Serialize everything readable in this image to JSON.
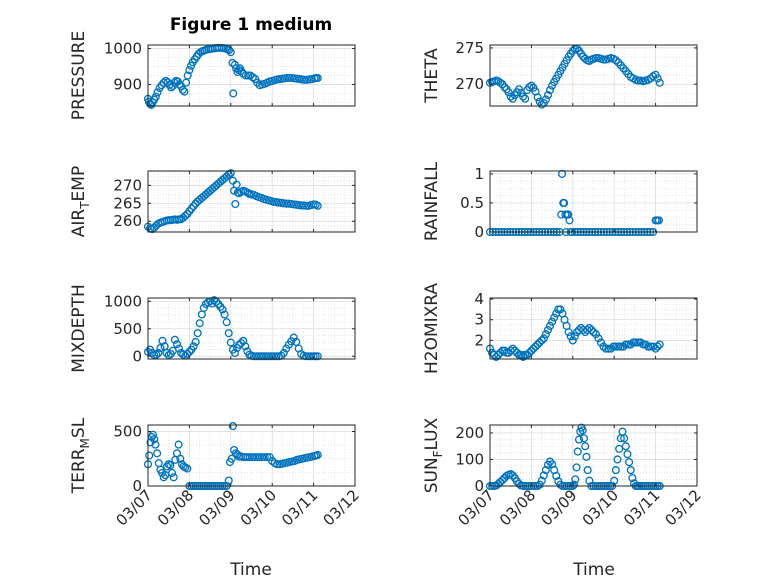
{
  "figure": {
    "title": "Figure 1 medium",
    "xlabel": "Time",
    "x_ticks": [
      "03/07",
      "03/08",
      "03/09",
      "03/10",
      "03/11",
      "03/12"
    ],
    "marker_color": "#0072BD",
    "grid_color": "#d9d9d9",
    "axes_color": "#262626"
  },
  "chart_data": [
    {
      "type": "scatter",
      "title": "Figure 1 medium",
      "ylabel": "PRESSURE",
      "ylim": [
        840,
        1010
      ],
      "yticks": [
        900,
        1000
      ],
      "xlim": [
        "03/07",
        "03/12"
      ],
      "x": [
        0.0,
        0.02,
        0.05,
        0.08,
        0.11,
        0.15,
        0.19,
        0.23,
        0.28,
        0.33,
        0.38,
        0.43,
        0.48,
        0.52,
        0.56,
        0.6,
        0.64,
        0.68,
        0.72,
        0.76,
        0.8,
        0.84,
        0.88,
        0.92,
        0.96,
        1.0,
        1.04,
        1.08,
        1.13,
        1.18,
        1.22,
        1.27,
        1.32,
        1.37,
        1.41,
        1.46,
        1.51,
        1.56,
        1.62,
        1.67,
        1.72,
        1.78,
        1.83,
        1.88,
        1.92,
        1.96,
        2.0,
        2.04,
        2.06,
        2.1,
        2.13,
        2.16,
        2.19,
        2.22,
        2.25,
        2.3,
        2.36,
        2.42,
        2.47,
        2.53,
        2.59,
        2.64,
        2.7,
        2.76,
        2.82,
        2.88,
        2.94,
        3.0,
        3.06,
        3.12,
        3.18,
        3.24,
        3.3,
        3.36,
        3.42,
        3.48,
        3.54,
        3.6,
        3.66,
        3.72,
        3.78,
        3.84,
        3.9,
        3.96,
        4.02,
        4.06,
        4.1
      ],
      "y": [
        860,
        852,
        846,
        843,
        850,
        858,
        866,
        878,
        890,
        898,
        905,
        910,
        906,
        899,
        892,
        896,
        905,
        910,
        908,
        900,
        895,
        885,
        880,
        905,
        925,
        940,
        952,
        962,
        970,
        978,
        985,
        990,
        993,
        995,
        997,
        998,
        999,
        1000,
        1001,
        1002,
        1002,
        1002,
        1001,
        1000,
        998,
        996,
        990,
        960,
        875,
        955,
        945,
        935,
        940,
        945,
        938,
        930,
        925,
        925,
        925,
        920,
        915,
        905,
        898,
        900,
        902,
        905,
        908,
        910,
        912,
        914,
        915,
        916,
        917,
        918,
        918,
        918,
        917,
        916,
        915,
        914,
        913,
        913,
        914,
        915,
        917,
        918,
        918
      ]
    },
    {
      "type": "scatter",
      "ylabel": "THETA",
      "ylim": [
        267,
        275.4
      ],
      "yticks": [
        270,
        275
      ],
      "xlim": [
        "03/07",
        "03/12"
      ],
      "x": [
        0.0,
        0.05,
        0.1,
        0.15,
        0.2,
        0.25,
        0.3,
        0.35,
        0.4,
        0.45,
        0.5,
        0.55,
        0.6,
        0.65,
        0.7,
        0.75,
        0.8,
        0.85,
        0.9,
        0.95,
        1.0,
        1.05,
        1.1,
        1.15,
        1.2,
        1.25,
        1.3,
        1.35,
        1.4,
        1.45,
        1.5,
        1.55,
        1.6,
        1.65,
        1.7,
        1.75,
        1.8,
        1.85,
        1.9,
        1.95,
        2.0,
        2.05,
        2.1,
        2.15,
        2.2,
        2.25,
        2.3,
        2.35,
        2.4,
        2.45,
        2.5,
        2.56,
        2.62,
        2.68,
        2.74,
        2.8,
        2.86,
        2.92,
        2.98,
        3.04,
        3.1,
        3.16,
        3.22,
        3.28,
        3.34,
        3.4,
        3.46,
        3.52,
        3.58,
        3.64,
        3.7,
        3.76,
        3.82,
        3.88,
        3.94,
        4.0,
        4.05,
        4.1
      ],
      "y": [
        270.2,
        270.3,
        270.4,
        270.5,
        270.4,
        270.2,
        270.0,
        269.6,
        269.3,
        268.9,
        268.3,
        268.0,
        268.5,
        268.9,
        269.3,
        268.8,
        268.3,
        268.0,
        269.2,
        269.6,
        269.8,
        269.5,
        269.0,
        268.2,
        267.6,
        267.2,
        267.4,
        267.9,
        268.5,
        269.2,
        269.8,
        270.3,
        270.8,
        271.3,
        271.8,
        272.3,
        272.8,
        273.3,
        273.8,
        274.2,
        274.6,
        274.8,
        274.9,
        274.6,
        274.2,
        273.8,
        273.5,
        273.3,
        273.2,
        273.4,
        273.5,
        273.6,
        273.6,
        273.5,
        273.4,
        273.4,
        273.5,
        273.6,
        273.5,
        273.3,
        273.0,
        272.6,
        272.2,
        271.8,
        271.4,
        271.0,
        270.8,
        270.6,
        270.5,
        270.5,
        270.4,
        270.5,
        270.6,
        270.8,
        271.1,
        271.3,
        270.8,
        270.2
      ]
    },
    {
      "type": "scatter",
      "ylabel": "AIR_TEMP",
      "ylim": [
        257,
        274
      ],
      "yticks": [
        260,
        265,
        270
      ],
      "xlim": [
        "03/07",
        "03/12"
      ],
      "x": [
        0.0,
        0.05,
        0.1,
        0.15,
        0.2,
        0.25,
        0.3,
        0.35,
        0.4,
        0.45,
        0.5,
        0.55,
        0.6,
        0.65,
        0.7,
        0.75,
        0.8,
        0.85,
        0.9,
        0.95,
        1.0,
        1.05,
        1.1,
        1.15,
        1.2,
        1.25,
        1.3,
        1.35,
        1.4,
        1.45,
        1.5,
        1.55,
        1.6,
        1.65,
        1.7,
        1.75,
        1.8,
        1.85,
        1.9,
        1.95,
        2.0,
        2.05,
        2.08,
        2.11,
        2.14,
        2.17,
        2.2,
        2.25,
        2.3,
        2.35,
        2.4,
        2.45,
        2.5,
        2.56,
        2.62,
        2.68,
        2.74,
        2.8,
        2.86,
        2.92,
        2.98,
        3.04,
        3.1,
        3.16,
        3.22,
        3.28,
        3.34,
        3.4,
        3.46,
        3.52,
        3.58,
        3.64,
        3.7,
        3.76,
        3.82,
        3.88,
        3.94,
        4.0,
        4.05,
        4.1
      ],
      "y": [
        258.5,
        258.0,
        257.8,
        258.2,
        258.8,
        259.3,
        259.6,
        259.8,
        260.0,
        260.2,
        260.3,
        260.3,
        260.4,
        260.5,
        260.4,
        260.5,
        260.6,
        261.0,
        261.5,
        262.0,
        262.8,
        263.5,
        264.2,
        264.9,
        265.5,
        266.0,
        266.5,
        267.0,
        267.5,
        268.0,
        268.5,
        269.0,
        269.5,
        270.0,
        270.5,
        271.0,
        271.5,
        272.0,
        272.5,
        273.0,
        273.4,
        271.3,
        268.5,
        264.8,
        270.2,
        268.0,
        267.8,
        268.2,
        268.5,
        268.3,
        268.0,
        267.6,
        267.5,
        267.3,
        267.0,
        266.7,
        266.5,
        266.2,
        266.0,
        265.8,
        265.6,
        265.4,
        265.3,
        265.2,
        265.1,
        265.0,
        264.9,
        264.9,
        264.8,
        264.7,
        264.6,
        264.5,
        264.4,
        264.4,
        264.3,
        264.3,
        264.5,
        264.7,
        264.6,
        264.3
      ]
    },
    {
      "type": "scatter",
      "ylabel": "RAINFALL",
      "ylim": [
        0,
        1.05
      ],
      "yticks": [
        0,
        0.5,
        1
      ],
      "xlim": [
        "03/07",
        "03/12"
      ],
      "x": [
        0.0,
        0.07,
        0.14,
        0.21,
        0.28,
        0.35,
        0.42,
        0.49,
        0.56,
        0.63,
        0.7,
        0.77,
        0.84,
        0.91,
        0.98,
        1.05,
        1.12,
        1.19,
        1.26,
        1.33,
        1.4,
        1.47,
        1.54,
        1.61,
        1.68,
        1.72,
        1.74,
        1.77,
        1.79,
        1.82,
        1.84,
        1.86,
        1.89,
        1.92,
        1.95,
        1.98,
        2.05,
        2.12,
        2.19,
        2.26,
        2.33,
        2.4,
        2.47,
        2.54,
        2.61,
        2.68,
        2.75,
        2.82,
        2.89,
        2.96,
        3.03,
        3.1,
        3.17,
        3.24,
        3.31,
        3.38,
        3.45,
        3.52,
        3.59,
        3.66,
        3.73,
        3.8,
        3.87,
        3.94,
        4.0,
        4.04,
        4.08
      ],
      "y": [
        0,
        0,
        0,
        0,
        0,
        0,
        0,
        0,
        0,
        0,
        0,
        0,
        0,
        0,
        0,
        0,
        0,
        0,
        0,
        0,
        0,
        0,
        0,
        0,
        0,
        0.3,
        1.0,
        0.5,
        0.5,
        0.3,
        0,
        0.3,
        0.3,
        0.2,
        0,
        0,
        0,
        0,
        0,
        0,
        0,
        0,
        0,
        0,
        0,
        0,
        0,
        0,
        0,
        0,
        0,
        0,
        0,
        0,
        0,
        0,
        0,
        0,
        0,
        0,
        0,
        0,
        0,
        0,
        0.2,
        0.2,
        0.2
      ]
    },
    {
      "type": "scatter",
      "ylabel": "MIXDEPTH",
      "ylim": [
        -50,
        1060
      ],
      "yticks": [
        0,
        500,
        1000
      ],
      "xlim": [
        "03/07",
        "03/12"
      ],
      "x": [
        0.0,
        0.05,
        0.1,
        0.15,
        0.2,
        0.25,
        0.3,
        0.35,
        0.4,
        0.45,
        0.5,
        0.55,
        0.6,
        0.65,
        0.7,
        0.75,
        0.8,
        0.85,
        0.9,
        0.95,
        1.0,
        1.05,
        1.1,
        1.15,
        1.2,
        1.25,
        1.3,
        1.35,
        1.4,
        1.45,
        1.5,
        1.55,
        1.6,
        1.65,
        1.7,
        1.75,
        1.8,
        1.85,
        1.9,
        1.95,
        2.0,
        2.05,
        2.1,
        2.15,
        2.2,
        2.25,
        2.3,
        2.35,
        2.4,
        2.45,
        2.5,
        2.56,
        2.62,
        2.68,
        2.74,
        2.8,
        2.86,
        2.92,
        2.98,
        3.04,
        3.1,
        3.16,
        3.22,
        3.28,
        3.34,
        3.4,
        3.46,
        3.52,
        3.58,
        3.64,
        3.7,
        3.76,
        3.82,
        3.88,
        3.94,
        4.0,
        4.05,
        4.1
      ],
      "y": [
        80,
        120,
        60,
        20,
        30,
        60,
        150,
        280,
        180,
        60,
        20,
        40,
        100,
        300,
        220,
        140,
        60,
        30,
        10,
        40,
        80,
        120,
        180,
        260,
        420,
        600,
        760,
        880,
        950,
        980,
        1000,
        960,
        1020,
        990,
        950,
        900,
        850,
        760,
        620,
        420,
        250,
        120,
        60,
        150,
        210,
        240,
        280,
        180,
        90,
        30,
        10,
        0,
        0,
        0,
        0,
        0,
        0,
        0,
        0,
        0,
        0,
        0,
        10,
        60,
        140,
        210,
        270,
        340,
        260,
        140,
        40,
        10,
        0,
        0,
        0,
        0,
        0,
        0
      ]
    },
    {
      "type": "scatter",
      "ylabel": "H2OMIXRA",
      "ylim": [
        1.1,
        4.05
      ],
      "yticks": [
        2,
        3,
        4
      ],
      "xlim": [
        "03/07",
        "03/12"
      ],
      "x": [
        0.0,
        0.05,
        0.1,
        0.15,
        0.2,
        0.25,
        0.3,
        0.35,
        0.4,
        0.45,
        0.5,
        0.55,
        0.6,
        0.65,
        0.7,
        0.75,
        0.8,
        0.85,
        0.9,
        0.95,
        1.0,
        1.05,
        1.1,
        1.15,
        1.2,
        1.25,
        1.3,
        1.35,
        1.4,
        1.45,
        1.5,
        1.55,
        1.6,
        1.65,
        1.7,
        1.75,
        1.8,
        1.85,
        1.9,
        1.95,
        2.0,
        2.05,
        2.1,
        2.15,
        2.2,
        2.25,
        2.3,
        2.35,
        2.4,
        2.45,
        2.5,
        2.56,
        2.62,
        2.68,
        2.74,
        2.8,
        2.86,
        2.92,
        2.98,
        3.04,
        3.1,
        3.16,
        3.22,
        3.28,
        3.34,
        3.4,
        3.46,
        3.52,
        3.58,
        3.64,
        3.7,
        3.76,
        3.82,
        3.88,
        3.94,
        4.0,
        4.05,
        4.1
      ],
      "y": [
        1.6,
        1.4,
        1.3,
        1.2,
        1.3,
        1.4,
        1.5,
        1.5,
        1.4,
        1.4,
        1.5,
        1.6,
        1.5,
        1.4,
        1.3,
        1.3,
        1.2,
        1.3,
        1.3,
        1.4,
        1.5,
        1.6,
        1.7,
        1.8,
        1.9,
        2.0,
        2.1,
        2.3,
        2.5,
        2.7,
        2.9,
        3.1,
        3.3,
        3.5,
        3.5,
        3.3,
        3.0,
        2.7,
        2.4,
        2.2,
        2.0,
        2.2,
        2.4,
        2.5,
        2.6,
        2.5,
        2.4,
        2.5,
        2.6,
        2.5,
        2.4,
        2.3,
        2.1,
        1.9,
        1.7,
        1.6,
        1.6,
        1.6,
        1.7,
        1.7,
        1.7,
        1.7,
        1.7,
        1.8,
        1.8,
        1.8,
        1.9,
        1.9,
        1.9,
        1.9,
        1.8,
        1.8,
        1.7,
        1.7,
        1.7,
        1.6,
        1.7,
        1.8
      ]
    },
    {
      "type": "scatter",
      "ylabel": "TERR_MSL",
      "ylim": [
        0,
        560
      ],
      "yticks": [
        0,
        500
      ],
      "xlim": [
        "03/07",
        "03/12"
      ],
      "x": [
        0.0,
        0.03,
        0.06,
        0.09,
        0.12,
        0.15,
        0.18,
        0.22,
        0.26,
        0.3,
        0.34,
        0.38,
        0.42,
        0.46,
        0.5,
        0.54,
        0.58,
        0.62,
        0.66,
        0.7,
        0.74,
        0.78,
        0.82,
        0.86,
        0.9,
        0.95,
        1.0,
        1.05,
        1.1,
        1.15,
        1.2,
        1.25,
        1.3,
        1.35,
        1.4,
        1.45,
        1.5,
        1.55,
        1.6,
        1.65,
        1.7,
        1.75,
        1.8,
        1.85,
        1.9,
        1.95,
        1.98,
        2.02,
        2.05,
        2.08,
        2.12,
        2.16,
        2.2,
        2.25,
        2.3,
        2.35,
        2.4,
        2.46,
        2.52,
        2.58,
        2.64,
        2.7,
        2.76,
        2.82,
        2.88,
        2.94,
        3.0,
        3.06,
        3.12,
        3.18,
        3.24,
        3.3,
        3.36,
        3.42,
        3.48,
        3.54,
        3.6,
        3.66,
        3.72,
        3.78,
        3.84,
        3.9,
        3.96,
        4.02,
        4.06,
        4.1
      ],
      "y": [
        200,
        280,
        400,
        450,
        470,
        430,
        380,
        300,
        210,
        150,
        120,
        80,
        100,
        180,
        200,
        190,
        120,
        80,
        240,
        300,
        380,
        250,
        200,
        180,
        170,
        160,
        0,
        0,
        0,
        0,
        0,
        0,
        0,
        0,
        0,
        0,
        0,
        0,
        0,
        0,
        0,
        0,
        0,
        0,
        0,
        50,
        220,
        250,
        550,
        330,
        300,
        290,
        270,
        270,
        265,
        265,
        265,
        265,
        265,
        265,
        265,
        265,
        265,
        265,
        265,
        265,
        230,
        210,
        200,
        200,
        205,
        210,
        215,
        220,
        225,
        230,
        240,
        245,
        250,
        255,
        260,
        265,
        270,
        275,
        280,
        285
      ]
    },
    {
      "type": "scatter",
      "ylabel": "SUN_FLUX",
      "ylim": [
        0,
        230
      ],
      "yticks": [
        0,
        100,
        200
      ],
      "xlim": [
        "03/07",
        "03/12"
      ],
      "x": [
        0.0,
        0.05,
        0.1,
        0.15,
        0.2,
        0.25,
        0.3,
        0.35,
        0.4,
        0.45,
        0.5,
        0.55,
        0.6,
        0.65,
        0.7,
        0.75,
        0.8,
        0.85,
        0.9,
        0.95,
        1.0,
        1.05,
        1.1,
        1.15,
        1.2,
        1.25,
        1.3,
        1.35,
        1.4,
        1.45,
        1.5,
        1.55,
        1.6,
        1.65,
        1.7,
        1.75,
        1.8,
        1.85,
        1.9,
        1.95,
        2.0,
        2.03,
        2.06,
        2.09,
        2.12,
        2.15,
        2.18,
        2.21,
        2.24,
        2.27,
        2.3,
        2.33,
        2.36,
        2.4,
        2.45,
        2.5,
        2.55,
        2.6,
        2.65,
        2.7,
        2.75,
        2.8,
        2.85,
        2.9,
        2.95,
        3.0,
        3.04,
        3.08,
        3.12,
        3.16,
        3.2,
        3.24,
        3.28,
        3.32,
        3.36,
        3.4,
        3.44,
        3.48,
        3.52,
        3.56,
        3.6,
        3.65,
        3.7,
        3.75,
        3.8,
        3.85,
        3.9,
        3.95,
        4.0,
        4.05,
        4.1
      ],
      "y": [
        0,
        0,
        0,
        2,
        8,
        15,
        22,
        30,
        38,
        42,
        45,
        40,
        30,
        18,
        8,
        2,
        0,
        0,
        0,
        0,
        0,
        0,
        0,
        0,
        5,
        20,
        40,
        60,
        80,
        92,
        82,
        60,
        38,
        18,
        5,
        0,
        0,
        0,
        0,
        0,
        0,
        5,
        25,
        70,
        130,
        175,
        205,
        220,
        210,
        180,
        150,
        110,
        60,
        20,
        0,
        0,
        0,
        0,
        0,
        0,
        0,
        0,
        0,
        0,
        0,
        20,
        60,
        100,
        140,
        180,
        205,
        180,
        150,
        120,
        90,
        60,
        30,
        10,
        0,
        0,
        0,
        0,
        0,
        0,
        0,
        0,
        0,
        0,
        0,
        0,
        0
      ]
    }
  ]
}
